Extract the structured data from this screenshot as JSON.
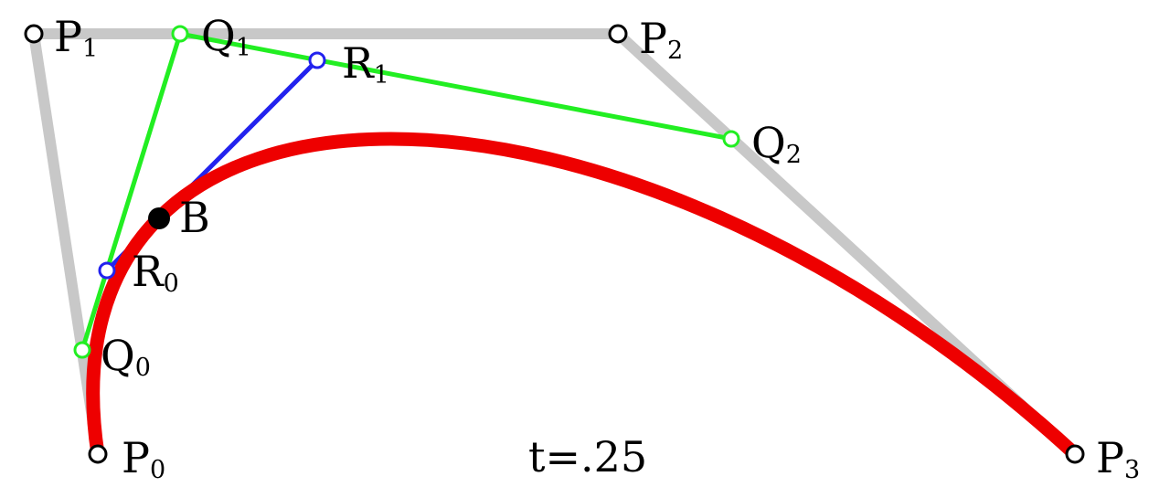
{
  "colors": {
    "background": "#ffffff",
    "control_polygon": "#c8c8c8",
    "first_level": "#22ee22",
    "second_level": "#2222ee",
    "curve": "#ee0000",
    "point_on_curve": "#000000"
  },
  "labels": {
    "P0": {
      "letter": "P",
      "sub": "0"
    },
    "P1": {
      "letter": "P",
      "sub": "1"
    },
    "P2": {
      "letter": "P",
      "sub": "2"
    },
    "P3": {
      "letter": "P",
      "sub": "3"
    },
    "Q0": {
      "letter": "Q",
      "sub": "0"
    },
    "Q1": {
      "letter": "Q",
      "sub": "1"
    },
    "Q2": {
      "letter": "Q",
      "sub": "2"
    },
    "R0": {
      "letter": "R",
      "sub": "0"
    },
    "R1": {
      "letter": "R",
      "sub": "1"
    },
    "B": "B"
  },
  "parameter_text": "t=.25"
}
